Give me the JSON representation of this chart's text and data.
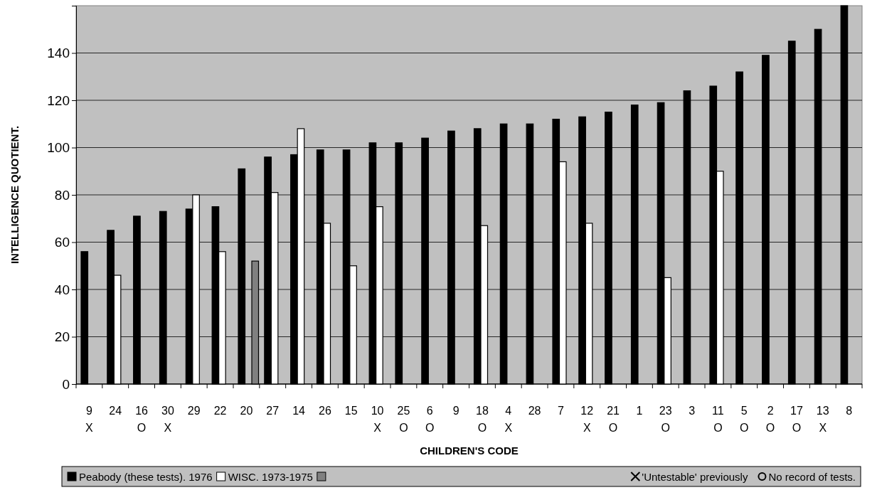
{
  "chart_data": {
    "type": "bar",
    "xlabel": "CHILDREN'S CODE",
    "ylabel": "INTELLIGENCE QUOTIENT.",
    "categories": [
      "9\nX",
      "24",
      "16\nO",
      "30\nX",
      "29",
      "22",
      "20",
      "27",
      "14",
      "26",
      "15",
      "10\nX",
      "25\nO",
      "6\nO",
      "9",
      "18\nO",
      "4\nX",
      "28",
      "7",
      "12\nX",
      "21\nO",
      "1",
      "23\nO",
      "3",
      "11\nO",
      "5\nO",
      "2\nO",
      "17\nO",
      "13\nX",
      "8"
    ],
    "series": [
      {
        "name": "Peabody (these tests). 1976",
        "color": "#000000",
        "values": [
          56,
          65,
          71,
          73,
          74,
          75,
          91,
          96,
          97,
          99,
          99,
          102,
          102,
          104,
          107,
          108,
          110,
          110,
          112,
          113,
          115,
          118,
          119,
          124,
          126,
          132,
          139,
          145,
          150,
          160
        ]
      },
      {
        "name": "WISC. 1973-1975",
        "color": "#ffffff",
        "values": [
          null,
          46,
          null,
          null,
          80,
          56,
          null,
          81,
          108,
          68,
          50,
          75,
          null,
          null,
          null,
          67,
          null,
          null,
          94,
          68,
          null,
          null,
          45,
          null,
          90,
          null,
          null,
          null,
          null,
          null
        ]
      },
      {
        "color": "#808080",
        "values": [
          null,
          null,
          null,
          null,
          null,
          null,
          52,
          null,
          null,
          null,
          null,
          null,
          null,
          null,
          null,
          null,
          null,
          null,
          null,
          null,
          null,
          null,
          null,
          null,
          null,
          null,
          null,
          null,
          null,
          null
        ]
      }
    ],
    "annotations": [
      "'Untestable' previously",
      "No record of tests."
    ],
    "ylim": [
      0,
      160
    ],
    "yticks": [
      0,
      20,
      40,
      60,
      80,
      100,
      120,
      140
    ],
    "grid": "y",
    "legend": "bottom"
  }
}
